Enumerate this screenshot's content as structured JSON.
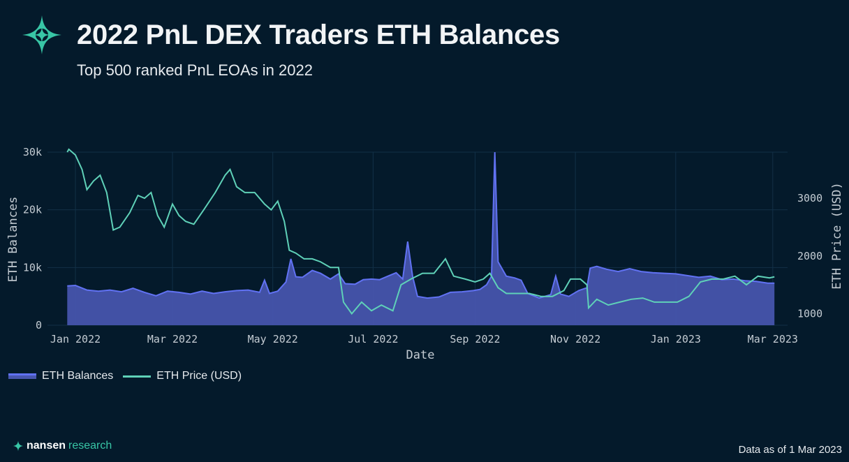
{
  "header": {
    "title": "2022 PnL DEX Traders ETH Balances",
    "subtitle": "Top 500 ranked PnL EOAs in 2022",
    "logo_icon": "nansen-star-icon"
  },
  "colors": {
    "background": "#041a2b",
    "balance_fill": "#4856b0",
    "balance_line": "#6172f3",
    "price_line": "#5fd1b8",
    "brand": "#38c6a6"
  },
  "legend": {
    "balances_label": "ETH Balances",
    "price_label": "ETH Price (USD)"
  },
  "footer": {
    "brand_bold": "nansen",
    "brand_light": "research",
    "note": "Data as of 1 Mar 2023"
  },
  "chart_data": {
    "type": "area",
    "xlabel": "Date",
    "ylabel": "ETH Balances",
    "y2label": "ETH Price (USD)",
    "xlim": [
      "2021-12-15",
      "2023-03-10"
    ],
    "ylim": [
      0,
      30000
    ],
    "y2lim": [
      800,
      3800
    ],
    "x_ticks": [
      {
        "date": "2022-01-01",
        "label": "Jan 2022"
      },
      {
        "date": "2022-03-01",
        "label": "Mar 2022"
      },
      {
        "date": "2022-05-01",
        "label": "May 2022"
      },
      {
        "date": "2022-07-01",
        "label": "Jul 2022"
      },
      {
        "date": "2022-09-01",
        "label": "Sep 2022"
      },
      {
        "date": "2022-11-01",
        "label": "Nov 2022"
      },
      {
        "date": "2023-01-01",
        "label": "Jan 2023"
      },
      {
        "date": "2023-03-01",
        "label": "Mar 2023"
      }
    ],
    "y_ticks": [
      {
        "value": 0,
        "label": "0"
      },
      {
        "value": 10000,
        "label": "10k"
      },
      {
        "value": 20000,
        "label": "20k"
      },
      {
        "value": 30000,
        "label": "30k"
      }
    ],
    "y2_ticks": [
      {
        "value": 1000,
        "label": "1000"
      },
      {
        "value": 2000,
        "label": "2000"
      },
      {
        "value": 3000,
        "label": "3000"
      }
    ],
    "grid": true,
    "legend_position": "bottom-left",
    "series": [
      {
        "name": "ETH Balances",
        "type": "area",
        "axis": "y",
        "points": [
          [
            "2021-12-27",
            0
          ],
          [
            "2021-12-27",
            6800
          ],
          [
            "2022-01-01",
            6900
          ],
          [
            "2022-01-08",
            6100
          ],
          [
            "2022-01-15",
            5900
          ],
          [
            "2022-01-22",
            6100
          ],
          [
            "2022-01-29",
            5800
          ],
          [
            "2022-02-05",
            6400
          ],
          [
            "2022-02-12",
            5700
          ],
          [
            "2022-02-19",
            5100
          ],
          [
            "2022-02-26",
            5900
          ],
          [
            "2022-03-05",
            5700
          ],
          [
            "2022-03-12",
            5400
          ],
          [
            "2022-03-19",
            5900
          ],
          [
            "2022-03-26",
            5500
          ],
          [
            "2022-04-02",
            5800
          ],
          [
            "2022-04-09",
            6000
          ],
          [
            "2022-04-16",
            6100
          ],
          [
            "2022-04-23",
            5700
          ],
          [
            "2022-04-26",
            7800
          ],
          [
            "2022-04-29",
            5500
          ],
          [
            "2022-05-04",
            5900
          ],
          [
            "2022-05-09",
            7500
          ],
          [
            "2022-05-12",
            11500
          ],
          [
            "2022-05-15",
            8400
          ],
          [
            "2022-05-19",
            8300
          ],
          [
            "2022-05-25",
            9500
          ],
          [
            "2022-05-30",
            9000
          ],
          [
            "2022-06-05",
            8000
          ],
          [
            "2022-06-10",
            8900
          ],
          [
            "2022-06-14",
            7200
          ],
          [
            "2022-06-20",
            7100
          ],
          [
            "2022-06-25",
            7900
          ],
          [
            "2022-06-30",
            8000
          ],
          [
            "2022-07-05",
            7900
          ],
          [
            "2022-07-10",
            8500
          ],
          [
            "2022-07-15",
            9100
          ],
          [
            "2022-07-19",
            8000
          ],
          [
            "2022-07-22",
            14500
          ],
          [
            "2022-07-25",
            8500
          ],
          [
            "2022-07-28",
            5000
          ],
          [
            "2022-08-03",
            4700
          ],
          [
            "2022-08-10",
            4900
          ],
          [
            "2022-08-17",
            5700
          ],
          [
            "2022-08-24",
            5800
          ],
          [
            "2022-08-31",
            6000
          ],
          [
            "2022-09-04",
            6200
          ],
          [
            "2022-09-08",
            7000
          ],
          [
            "2022-09-11",
            8500
          ],
          [
            "2022-09-13",
            30000
          ],
          [
            "2022-09-15",
            11000
          ],
          [
            "2022-09-20",
            8500
          ],
          [
            "2022-09-25",
            8200
          ],
          [
            "2022-09-29",
            7800
          ],
          [
            "2022-10-03",
            5500
          ],
          [
            "2022-10-10",
            4700
          ],
          [
            "2022-10-17",
            5300
          ],
          [
            "2022-10-20",
            8500
          ],
          [
            "2022-10-23",
            5400
          ],
          [
            "2022-10-28",
            5000
          ],
          [
            "2022-11-03",
            6000
          ],
          [
            "2022-11-08",
            6500
          ],
          [
            "2022-11-10",
            9900
          ],
          [
            "2022-11-14",
            10200
          ],
          [
            "2022-11-20",
            9700
          ],
          [
            "2022-11-27",
            9300
          ],
          [
            "2022-12-04",
            9800
          ],
          [
            "2022-12-11",
            9300
          ],
          [
            "2022-12-18",
            9100
          ],
          [
            "2022-12-25",
            9000
          ],
          [
            "2023-01-01",
            8900
          ],
          [
            "2023-01-08",
            8600
          ],
          [
            "2023-01-15",
            8300
          ],
          [
            "2023-01-22",
            8500
          ],
          [
            "2023-01-29",
            7900
          ],
          [
            "2023-02-05",
            8000
          ],
          [
            "2023-02-12",
            7700
          ],
          [
            "2023-02-19",
            7600
          ],
          [
            "2023-02-26",
            7300
          ],
          [
            "2023-03-02",
            7300
          ],
          [
            "2023-03-02",
            0
          ]
        ]
      },
      {
        "name": "ETH Price (USD)",
        "type": "line",
        "axis": "y2",
        "points": [
          [
            "2021-12-27",
            3800
          ],
          [
            "2021-12-28",
            3850
          ],
          [
            "2022-01-01",
            3750
          ],
          [
            "2022-01-05",
            3500
          ],
          [
            "2022-01-08",
            3150
          ],
          [
            "2022-01-12",
            3300
          ],
          [
            "2022-01-16",
            3400
          ],
          [
            "2022-01-20",
            3100
          ],
          [
            "2022-01-24",
            2450
          ],
          [
            "2022-01-28",
            2500
          ],
          [
            "2022-02-03",
            2750
          ],
          [
            "2022-02-08",
            3050
          ],
          [
            "2022-02-12",
            3000
          ],
          [
            "2022-02-16",
            3100
          ],
          [
            "2022-02-20",
            2700
          ],
          [
            "2022-02-24",
            2500
          ],
          [
            "2022-03-01",
            2900
          ],
          [
            "2022-03-05",
            2700
          ],
          [
            "2022-03-09",
            2600
          ],
          [
            "2022-03-14",
            2550
          ],
          [
            "2022-03-20",
            2800
          ],
          [
            "2022-03-27",
            3100
          ],
          [
            "2022-04-02",
            3400
          ],
          [
            "2022-04-05",
            3500
          ],
          [
            "2022-04-09",
            3200
          ],
          [
            "2022-04-14",
            3100
          ],
          [
            "2022-04-20",
            3100
          ],
          [
            "2022-04-26",
            2900
          ],
          [
            "2022-04-30",
            2800
          ],
          [
            "2022-05-04",
            2950
          ],
          [
            "2022-05-08",
            2600
          ],
          [
            "2022-05-11",
            2100
          ],
          [
            "2022-05-15",
            2050
          ],
          [
            "2022-05-20",
            1950
          ],
          [
            "2022-05-25",
            1950
          ],
          [
            "2022-05-30",
            1900
          ],
          [
            "2022-06-05",
            1800
          ],
          [
            "2022-06-10",
            1800
          ],
          [
            "2022-06-13",
            1200
          ],
          [
            "2022-06-18",
            1000
          ],
          [
            "2022-06-24",
            1200
          ],
          [
            "2022-06-30",
            1050
          ],
          [
            "2022-07-06",
            1150
          ],
          [
            "2022-07-13",
            1050
          ],
          [
            "2022-07-18",
            1500
          ],
          [
            "2022-07-24",
            1600
          ],
          [
            "2022-07-31",
            1700
          ],
          [
            "2022-08-07",
            1700
          ],
          [
            "2022-08-14",
            1950
          ],
          [
            "2022-08-19",
            1650
          ],
          [
            "2022-08-26",
            1600
          ],
          [
            "2022-09-01",
            1550
          ],
          [
            "2022-09-06",
            1600
          ],
          [
            "2022-09-10",
            1700
          ],
          [
            "2022-09-15",
            1450
          ],
          [
            "2022-09-20",
            1350
          ],
          [
            "2022-09-27",
            1350
          ],
          [
            "2022-10-04",
            1350
          ],
          [
            "2022-10-11",
            1300
          ],
          [
            "2022-10-18",
            1300
          ],
          [
            "2022-10-25",
            1400
          ],
          [
            "2022-10-29",
            1600
          ],
          [
            "2022-11-04",
            1600
          ],
          [
            "2022-11-08",
            1500
          ],
          [
            "2022-11-09",
            1100
          ],
          [
            "2022-11-14",
            1250
          ],
          [
            "2022-11-21",
            1150
          ],
          [
            "2022-11-28",
            1200
          ],
          [
            "2022-12-05",
            1250
          ],
          [
            "2022-12-12",
            1270
          ],
          [
            "2022-12-19",
            1200
          ],
          [
            "2022-12-26",
            1200
          ],
          [
            "2023-01-02",
            1200
          ],
          [
            "2023-01-09",
            1300
          ],
          [
            "2023-01-16",
            1550
          ],
          [
            "2023-01-23",
            1600
          ],
          [
            "2023-01-30",
            1600
          ],
          [
            "2023-02-06",
            1650
          ],
          [
            "2023-02-13",
            1500
          ],
          [
            "2023-02-20",
            1650
          ],
          [
            "2023-02-27",
            1620
          ],
          [
            "2023-03-02",
            1640
          ]
        ]
      }
    ]
  }
}
